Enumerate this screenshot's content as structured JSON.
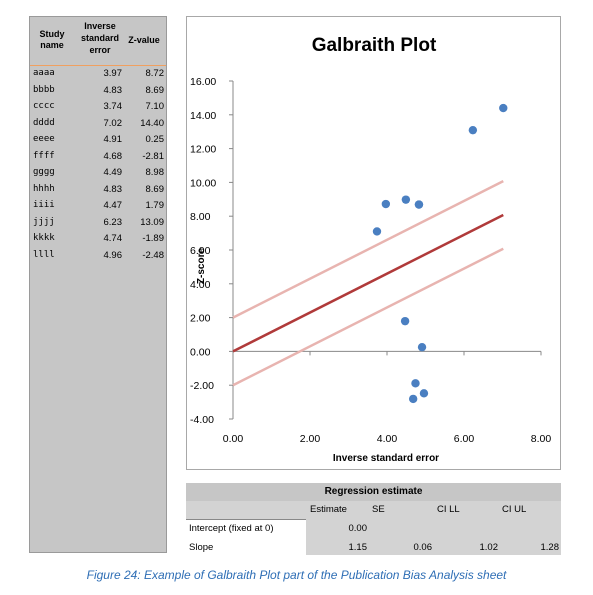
{
  "table": {
    "header_study": "Study name",
    "header_inverse": "Inverse standard error",
    "header_z": "Z-value",
    "rows": [
      {
        "name": "aaaa",
        "inv": "3.97",
        "z": "8.72"
      },
      {
        "name": "bbbb",
        "inv": "4.83",
        "z": "8.69"
      },
      {
        "name": "cccc",
        "inv": "3.74",
        "z": "7.10"
      },
      {
        "name": "dddd",
        "inv": "7.02",
        "z": "14.40"
      },
      {
        "name": "eeee",
        "inv": "4.91",
        "z": "0.25"
      },
      {
        "name": "ffff",
        "inv": "4.68",
        "z": "-2.81"
      },
      {
        "name": "gggg",
        "inv": "4.49",
        "z": "8.98"
      },
      {
        "name": "hhhh",
        "inv": "4.83",
        "z": "8.69"
      },
      {
        "name": "iiii",
        "inv": "4.47",
        "z": "1.79"
      },
      {
        "name": "jjjj",
        "inv": "6.23",
        "z": "13.09"
      },
      {
        "name": "kkkk",
        "inv": "4.74",
        "z": "-1.89"
      },
      {
        "name": "llll",
        "inv": "4.96",
        "z": "-2.48"
      }
    ]
  },
  "chart_data": {
    "type": "scatter",
    "title": "Galbraith Plot",
    "xlabel": "Inverse standard error",
    "ylabel": "Z-score",
    "xlim": [
      0,
      8
    ],
    "ylim": [
      -4,
      16
    ],
    "x_ticks": [
      "0.00",
      "2.00",
      "4.00",
      "6.00",
      "8.00"
    ],
    "y_ticks": [
      "16.00",
      "14.00",
      "12.00",
      "10.00",
      "8.00",
      "6.00",
      "4.00",
      "2.00",
      "0.00",
      "-2.00",
      "-4.00"
    ],
    "points": [
      {
        "x": 3.97,
        "y": 8.72
      },
      {
        "x": 4.83,
        "y": 8.69
      },
      {
        "x": 3.74,
        "y": 7.1
      },
      {
        "x": 7.02,
        "y": 14.4
      },
      {
        "x": 4.91,
        "y": 0.25
      },
      {
        "x": 4.68,
        "y": -2.81
      },
      {
        "x": 4.49,
        "y": 8.98
      },
      {
        "x": 4.83,
        "y": 8.69
      },
      {
        "x": 4.47,
        "y": 1.79
      },
      {
        "x": 6.23,
        "y": 13.09
      },
      {
        "x": 4.74,
        "y": -1.89
      },
      {
        "x": 4.96,
        "y": -2.48
      }
    ],
    "regression": {
      "intercept": 0,
      "slope": 1.15,
      "band": 2
    },
    "colors": {
      "points": "#4a7fc1",
      "regression": "#b03a3a",
      "band": "#e8b4b0"
    }
  },
  "regression_table": {
    "title": "Regression estimate",
    "col_estimate": "Estimate",
    "col_se": "SE",
    "col_cill": "CI LL",
    "col_ciul": "CI UL",
    "intercept_label": "Intercept (fixed at 0)",
    "intercept_estimate": "0.00",
    "slope_label": "Slope",
    "slope_estimate": "1.15",
    "slope_se": "0.06",
    "slope_cill": "1.02",
    "slope_ciul": "1.28"
  },
  "caption": "Figure 24: Example of Galbraith Plot part of the Publication Bias Analysis sheet"
}
